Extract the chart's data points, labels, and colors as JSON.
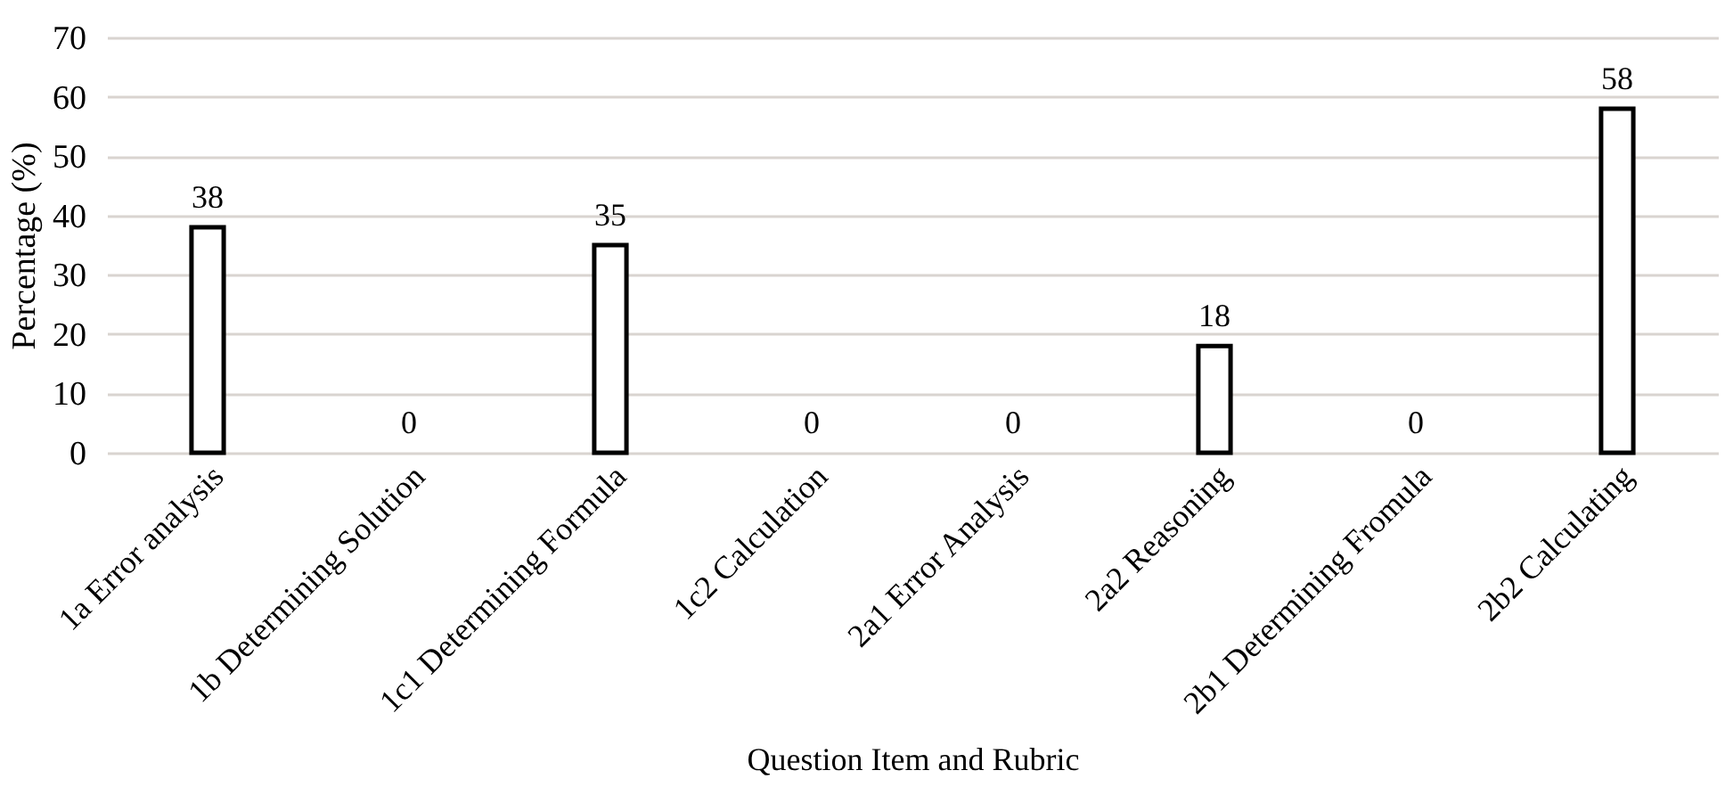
{
  "chart_data": {
    "type": "bar",
    "xlabel": "Question Item and Rubric",
    "ylabel": "Percentage (%)",
    "categories": [
      "1a Error analysis",
      "1b Determining Solution",
      "1c1 Determining Formula",
      "1c2 Calculation",
      "2a1 Error Analysis",
      "2a2 Reasoning",
      "2b1 Determining Fromula",
      "2b2 Calculating"
    ],
    "values": [
      38,
      0,
      35,
      0,
      0,
      18,
      0,
      58
    ],
    "color": "#ffffff",
    "ylim": [
      0,
      70
    ],
    "yticks": [
      0,
      10,
      20,
      30,
      40,
      50,
      60,
      70
    ],
    "grid": "y",
    "data_labels": true
  }
}
